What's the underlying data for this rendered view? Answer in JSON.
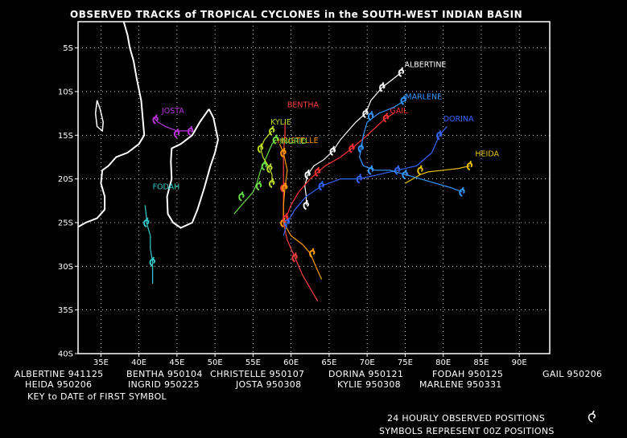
{
  "title": "OBSERVED TRACKS of TROPICAL CYCLONES in the SOUTH-WEST INDIAN BASIN",
  "axes": {
    "lon_range": [
      32,
      94
    ],
    "lat_range": [
      -40,
      -2
    ],
    "x_ticks": [
      "35E",
      "40E",
      "45E",
      "50E",
      "55E",
      "60E",
      "65E",
      "70E",
      "75E",
      "80E",
      "85E",
      "90E"
    ],
    "y_ticks": [
      "5S",
      "10S",
      "15S",
      "20S",
      "25S",
      "30S",
      "35S",
      "40S"
    ],
    "grid": true
  },
  "legend_rows": [
    [
      {
        "name": "ALBERTINE",
        "date": "941125"
      },
      {
        "name": "BENTHA",
        "date": "950104"
      },
      {
        "name": "CHRISTELLE",
        "date": "950107"
      },
      {
        "name": "DORINA",
        "date": "950121"
      },
      {
        "name": "FODAH",
        "date": "950125"
      },
      {
        "name": "GAIL",
        "date": "950206"
      }
    ],
    [
      {
        "name": "HEIDA",
        "date": "950206"
      },
      {
        "name": "INGRID",
        "date": "950225"
      },
      {
        "name": "JOSTA",
        "date": "950308"
      },
      {
        "name": "KYLIE",
        "date": "950308"
      },
      {
        "name": "MARLENE",
        "date": "950331"
      }
    ]
  ],
  "key_text": "KEY to DATE of FIRST SYMBOL",
  "footer": {
    "line1": "24 HOURLY OBSERVED POSITIONS",
    "line2": "SYMBOLS REPRESENT 00Z POSITIONS"
  },
  "chart_data": {
    "type": "map-tracks",
    "storms": [
      {
        "name": "ALBERTINE",
        "color": "#ffffff",
        "label": [
          74.9,
          -7.2
        ],
        "track": [
          [
            74.5,
            -7.8
          ],
          [
            73.5,
            -8.5
          ],
          [
            72.0,
            -9.5
          ],
          [
            70.5,
            -11.0
          ],
          [
            69.8,
            -12.5
          ],
          [
            68.5,
            -13.5
          ],
          [
            67.5,
            -14.5
          ],
          [
            66.5,
            -15.5
          ],
          [
            65.5,
            -16.8
          ],
          [
            64.3,
            -17.8
          ],
          [
            63.0,
            -18.5
          ],
          [
            62.2,
            -19.5
          ],
          [
            61.8,
            -20.8
          ],
          [
            62.0,
            -22.0
          ],
          [
            62.0,
            -23.0
          ]
        ],
        "symbols": [
          [
            74.5,
            -7.8
          ],
          [
            72.0,
            -9.5
          ],
          [
            69.8,
            -12.5
          ],
          [
            65.5,
            -16.8
          ],
          [
            62.2,
            -19.5
          ],
          [
            62.0,
            -23.0
          ]
        ]
      },
      {
        "name": "BENTHA",
        "color": "#ff4040",
        "label": [
          59.5,
          -11.8
        ],
        "track": [
          [
            59.2,
            -13.5
          ],
          [
            59.2,
            -15.0
          ],
          [
            59.0,
            -17.0
          ],
          [
            59.0,
            -19.0
          ],
          [
            59.0,
            -21.0
          ],
          [
            59.0,
            -23.0
          ],
          [
            59.0,
            -25.0
          ],
          [
            59.5,
            -27.0
          ],
          [
            60.5,
            -29.0
          ],
          [
            61.5,
            -31.0
          ],
          [
            62.5,
            -32.5
          ],
          [
            63.5,
            -34.0
          ]
        ],
        "symbols": [
          [
            59.0,
            -17.0
          ],
          [
            59.0,
            -21.0
          ],
          [
            59.0,
            -25.0
          ],
          [
            60.5,
            -29.0
          ]
        ]
      },
      {
        "name": "CHRISTELLE",
        "color": "#ff9a00",
        "label": [
          57.5,
          -15.9
        ],
        "track": [
          [
            58.5,
            -16.0
          ],
          [
            59.0,
            -17.0
          ],
          [
            59.5,
            -19.0
          ],
          [
            59.2,
            -21.0
          ],
          [
            59.0,
            -23.0
          ],
          [
            59.0,
            -25.0
          ],
          [
            60.0,
            -26.5
          ],
          [
            61.5,
            -27.5
          ],
          [
            62.5,
            -28.5
          ],
          [
            63.5,
            -30.5
          ],
          [
            64.0,
            -31.5
          ]
        ],
        "symbols": [
          [
            59.0,
            -17.0
          ],
          [
            59.2,
            -21.0
          ],
          [
            59.0,
            -25.0
          ],
          [
            62.8,
            -28.5
          ]
        ]
      },
      {
        "name": "DORINA",
        "color": "#3366ff",
        "label": [
          80.0,
          -13.4
        ],
        "track": [
          [
            80.5,
            -14.0
          ],
          [
            79.5,
            -15.0
          ],
          [
            78.5,
            -17.0
          ],
          [
            76.5,
            -18.5
          ],
          [
            74.0,
            -19.0
          ],
          [
            71.5,
            -19.5
          ],
          [
            69.0,
            -20.0
          ],
          [
            66.5,
            -20.0
          ],
          [
            64.0,
            -20.8
          ],
          [
            62.0,
            -22.0
          ],
          [
            60.5,
            -23.5
          ],
          [
            59.5,
            -25.0
          ],
          [
            59.0,
            -26.5
          ]
        ],
        "symbols": [
          [
            79.5,
            -15.0
          ],
          [
            74.0,
            -19.0
          ],
          [
            69.0,
            -20.0
          ],
          [
            64.0,
            -20.8
          ],
          [
            59.5,
            -25.0
          ]
        ]
      },
      {
        "name": "FODAH",
        "color": "#33cccc",
        "label": [
          41.8,
          -21.2
        ],
        "track": [
          [
            40.8,
            -23.0
          ],
          [
            41.0,
            -24.5
          ],
          [
            41.0,
            -25.0
          ],
          [
            41.5,
            -26.5
          ],
          [
            41.5,
            -28.0
          ],
          [
            41.8,
            -29.5
          ],
          [
            41.8,
            -31.0
          ],
          [
            41.8,
            -32.0
          ]
        ],
        "symbols": [
          [
            41.0,
            -25.0
          ],
          [
            41.8,
            -29.5
          ]
        ]
      },
      {
        "name": "GAIL",
        "color": "#ff3333",
        "label": [
          73.0,
          -12.5
        ],
        "track": [
          [
            73.5,
            -12.5
          ],
          [
            72.5,
            -13.0
          ],
          [
            71.5,
            -13.8
          ],
          [
            70.0,
            -15.0
          ],
          [
            68.0,
            -16.5
          ],
          [
            66.5,
            -17.5
          ],
          [
            64.5,
            -18.5
          ],
          [
            62.5,
            -20.0
          ],
          [
            61.0,
            -21.5
          ],
          [
            60.0,
            -23.0
          ],
          [
            59.3,
            -24.5
          ]
        ],
        "symbols": [
          [
            72.5,
            -13.0
          ],
          [
            68.0,
            -16.5
          ],
          [
            63.5,
            -19.2
          ],
          [
            59.3,
            -24.5
          ]
        ]
      },
      {
        "name": "HEIDA",
        "color": "#e8c000",
        "label": [
          84.2,
          -17.4
        ],
        "track": [
          [
            83.5,
            -18.5
          ],
          [
            82.0,
            -18.8
          ],
          [
            80.0,
            -19.0
          ],
          [
            78.0,
            -19.2
          ],
          [
            77.0,
            -19.5
          ],
          [
            76.0,
            -20.0
          ],
          [
            75.0,
            -20.5
          ]
        ],
        "symbols": [
          [
            83.5,
            -18.5
          ],
          [
            77.0,
            -19.0
          ]
        ]
      },
      {
        "name": "INGRID",
        "color": "#66dd44",
        "label": [
          58.5,
          -16.0
        ],
        "track": [
          [
            58.0,
            -15.5
          ],
          [
            57.5,
            -16.0
          ],
          [
            57.0,
            -17.0
          ],
          [
            56.5,
            -18.0
          ],
          [
            56.0,
            -19.0
          ],
          [
            55.5,
            -20.5
          ],
          [
            55.0,
            -21.5
          ],
          [
            54.5,
            -22.0
          ],
          [
            53.5,
            -23.0
          ],
          [
            52.5,
            -24.0
          ]
        ],
        "symbols": [
          [
            58.0,
            -15.5
          ],
          [
            56.5,
            -18.5
          ],
          [
            55.8,
            -20.8
          ],
          [
            53.5,
            -22.0
          ]
        ]
      },
      {
        "name": "JOSTA",
        "color": "#bb33dd",
        "label": [
          43.0,
          -12.5
        ],
        "track": [
          [
            42.0,
            -13.0
          ],
          [
            42.5,
            -13.5
          ],
          [
            43.5,
            -14.0
          ],
          [
            45.0,
            -14.5
          ],
          [
            46.0,
            -14.5
          ],
          [
            47.0,
            -14.5
          ]
        ],
        "symbols": [
          [
            42.2,
            -13.2
          ],
          [
            45.0,
            -14.8
          ],
          [
            46.8,
            -14.5
          ]
        ]
      },
      {
        "name": "KYLIE",
        "color": "#bbdd22",
        "label": [
          57.3,
          -13.8
        ],
        "track": [
          [
            57.5,
            -14.5
          ],
          [
            57.0,
            -15.0
          ],
          [
            56.5,
            -15.5
          ],
          [
            56.0,
            -16.5
          ],
          [
            56.3,
            -17.5
          ],
          [
            57.0,
            -18.5
          ],
          [
            57.5,
            -19.5
          ],
          [
            57.5,
            -20.5
          ]
        ],
        "symbols": [
          [
            57.5,
            -14.5
          ],
          [
            56.0,
            -16.5
          ],
          [
            57.2,
            -18.8
          ],
          [
            57.5,
            -20.5
          ]
        ]
      },
      {
        "name": "MARLENE",
        "color": "#3399ff",
        "label": [
          75.0,
          -10.9
        ],
        "track": [
          [
            75.0,
            -11.0
          ],
          [
            73.5,
            -11.8
          ],
          [
            71.5,
            -12.5
          ],
          [
            70.0,
            -13.5
          ],
          [
            69.5,
            -15.0
          ],
          [
            69.2,
            -16.5
          ],
          [
            69.0,
            -17.5
          ],
          [
            69.5,
            -18.5
          ],
          [
            71.0,
            -19.0
          ],
          [
            73.0,
            -19.0
          ],
          [
            75.0,
            -19.5
          ],
          [
            77.0,
            -20.0
          ],
          [
            79.0,
            -20.5
          ],
          [
            81.0,
            -21.0
          ],
          [
            82.5,
            -21.5
          ]
        ],
        "symbols": [
          [
            74.8,
            -11.0
          ],
          [
            70.5,
            -12.8
          ],
          [
            69.2,
            -16.5
          ],
          [
            70.5,
            -19.0
          ],
          [
            75.0,
            -19.5
          ],
          [
            82.5,
            -21.5
          ]
        ]
      }
    ]
  },
  "coastlines": {
    "africa": [
      [
        32,
        -25.5
      ],
      [
        33,
        -25
      ],
      [
        34.5,
        -24.5
      ],
      [
        35.5,
        -23.5
      ],
      [
        35.5,
        -22
      ],
      [
        35,
        -20.5
      ],
      [
        35.2,
        -19
      ],
      [
        36,
        -18.5
      ],
      [
        37,
        -17.5
      ],
      [
        38.5,
        -17
      ],
      [
        40,
        -16
      ],
      [
        40.7,
        -15
      ],
      [
        40.5,
        -13
      ],
      [
        40.3,
        -11
      ],
      [
        39.7,
        -8.5
      ],
      [
        39.3,
        -6.5
      ],
      [
        38.8,
        -5
      ],
      [
        38.5,
        -3.5
      ],
      [
        38,
        -2
      ]
    ],
    "madagascar": [
      [
        49.2,
        -12
      ],
      [
        49.8,
        -13
      ],
      [
        50.4,
        -15.5
      ],
      [
        50,
        -17
      ],
      [
        49.4,
        -18.5
      ],
      [
        48.6,
        -21
      ],
      [
        47.7,
        -23.5
      ],
      [
        47,
        -25
      ],
      [
        45.5,
        -25.6
      ],
      [
        44.5,
        -25
      ],
      [
        43.8,
        -24
      ],
      [
        43.7,
        -22
      ],
      [
        44.3,
        -20
      ],
      [
        44.2,
        -18
      ],
      [
        44.3,
        -16.5
      ],
      [
        45.5,
        -16
      ],
      [
        47,
        -15
      ],
      [
        48,
        -13.5
      ],
      [
        49.2,
        -12
      ]
    ],
    "lake": [
      [
        34.5,
        -11
      ],
      [
        34.9,
        -12
      ],
      [
        35.3,
        -13.5
      ],
      [
        35.2,
        -14.5
      ],
      [
        34.5,
        -14
      ],
      [
        34.3,
        -12.5
      ],
      [
        34.5,
        -11
      ]
    ]
  }
}
